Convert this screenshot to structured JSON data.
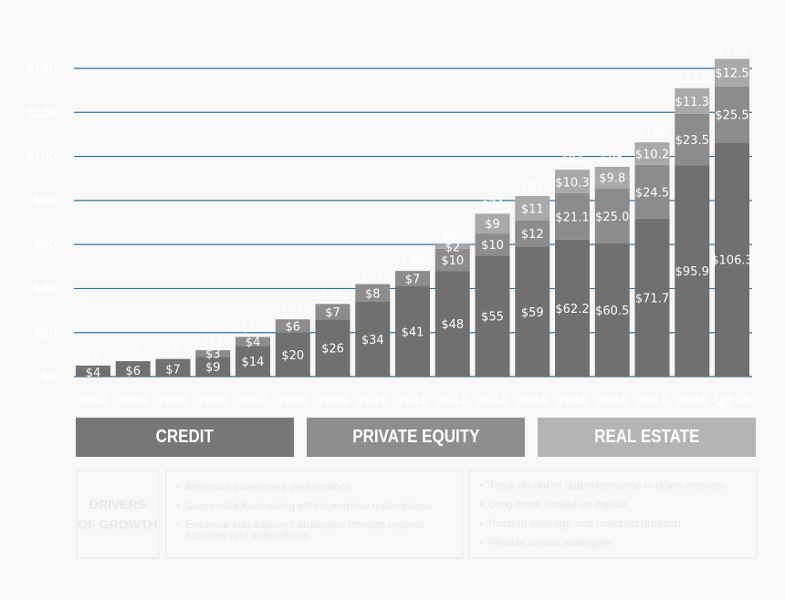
{
  "chart_data": {
    "type": "bar",
    "stacked": true,
    "categories": [
      "2003",
      "2004",
      "2005",
      "2006",
      "2007",
      "2008",
      "2009",
      "2010",
      "2011",
      "2012",
      "2013",
      "2014",
      "2015",
      "2016",
      "2017",
      "2018",
      "Q3'19"
    ],
    "yticks": [
      "$0",
      "$20",
      "$40",
      "$60",
      "$80",
      "$100",
      "$120",
      "$140"
    ],
    "ylim": [
      0,
      140
    ],
    "grid": true,
    "series": [
      {
        "values": [
          4,
          6,
          7,
          9,
          14,
          20,
          26,
          34,
          41,
          48,
          55,
          59,
          62.2,
          60.5,
          71.7,
          95.9,
          106.3
        ],
        "labels": [
          "$4",
          "$6",
          "$7",
          "$9",
          "$14",
          "$20",
          "$26",
          "$34",
          "$41",
          "$48",
          "$55",
          "$59",
          "$62.2",
          "$60.5",
          "$71.7",
          "$95.9",
          "$106.3"
        ],
        "color": "#707070"
      },
      {
        "values": [
          0,
          0,
          0,
          3,
          4,
          6,
          7,
          8,
          7,
          10,
          10,
          12,
          21.1,
          25.0,
          24.5,
          23.5,
          25.5
        ],
        "labels": [
          "",
          "",
          "",
          "$3",
          "$4",
          "$6",
          "$7",
          "$8",
          "$7",
          "$10",
          "$10",
          "$12",
          "$21.1",
          "$25.0",
          "$24.5",
          "$23.5",
          "$25.5"
        ],
        "color": "#8c8c8c"
      },
      {
        "values": [
          0,
          0,
          0,
          0,
          0,
          0,
          0,
          0,
          0,
          2,
          9,
          11,
          10.3,
          9.8,
          10.2,
          11.3,
          12.5
        ],
        "labels": [
          "",
          "",
          "",
          "",
          "",
          "",
          "",
          "",
          "",
          "$2",
          "$9",
          "$11",
          "$10.3",
          "$9.8",
          "$10.2",
          "$11.3",
          "$12.5"
        ],
        "color": "#a9a9a9"
      }
    ],
    "totals": [
      5,
      7,
      8,
      12,
      18,
      25,
      33,
      42,
      48,
      60,
      74,
      82,
      94,
      95,
      106,
      131,
      144
    ],
    "total_labels": [
      "$5",
      "$7",
      "$8",
      "$12",
      "$18",
      "$25",
      "$33",
      "$42",
      "$48",
      "$60",
      "$74",
      "$82",
      "$94",
      "$95",
      "$106",
      "$131",
      "$144"
    ]
  },
  "segments_legend": {
    "credit": "CREDIT",
    "private_equity": "PRIVATE EQUITY",
    "real_estate": "REAL ESTATE"
  },
  "drivers": {
    "title_line1": "DRIVERS",
    "title_line2": "OF GROWTH",
    "left_bullets": [
      "Attractive investment performance",
      "Successful fundraising efforts and low redemptions",
      "Entrance into adjacent strategies through organic activities and acquisitions"
    ],
    "right_bullets": [
      "Track record of outperformance in down markets",
      "Long-lived, locked up capital",
      "Prudent leverage and matched duration",
      "Flexible capital strategies"
    ]
  },
  "colors": {
    "background": "#f8f8f8",
    "gridline": "#2e6f9b",
    "credit": "#777777",
    "private_equity": "#8e8e8e",
    "real_estate": "#b4b4b4"
  }
}
